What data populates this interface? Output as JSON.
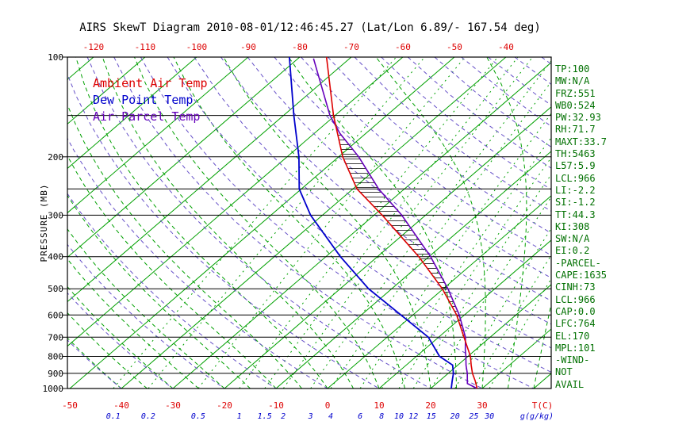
{
  "title": "AIRS SkewT Diagram 2010-08-01/12:46:45.27 (Lat/Lon 6.89/- 167.54 deg)",
  "legend": {
    "items": [
      {
        "label": "Ambient Air Temp",
        "color": "#dd0000"
      },
      {
        "label": "Dew Point Temp",
        "color": "#0000cc"
      },
      {
        "label": "Air Parcel Temp",
        "color": "#6600bb"
      }
    ]
  },
  "axes": {
    "pressure_title": "PRESSURE (MB)",
    "pressure_labels": [
      100,
      200,
      300,
      400,
      500,
      600,
      700,
      800,
      900,
      1000
    ],
    "grid_pressures": [
      100,
      150,
      200,
      250,
      300,
      400,
      500,
      600,
      700,
      800,
      900,
      1000
    ],
    "top_temp_labels": [
      -120,
      -110,
      -100,
      -90,
      -80,
      -70,
      -60,
      -50,
      -40
    ],
    "bottom_temp_labels": [
      -50,
      -40,
      -30,
      -20,
      -10,
      0,
      10,
      20,
      30
    ],
    "temp_title": "T(C)",
    "mixr_title": "g(g/kg)",
    "mixing_ratio_labels": [
      0.1,
      0.2,
      0.5,
      1,
      1.5,
      2,
      3,
      4,
      6,
      8,
      10,
      12,
      15,
      20,
      25,
      30
    ]
  },
  "stats": {
    "lines": [
      "TP:100",
      "MW:N/A",
      "FRZ:551",
      "WB0:524",
      "PW:32.93",
      "RH:71.7",
      "MAXT:33.7",
      "TH:5463",
      "L57:5.9",
      "LCL:966",
      "LI:-2.2",
      "SI:-1.2",
      "TT:44.3",
      "KI:308",
      "SW:N/A",
      "EI:0.2",
      "-PARCEL-",
      "CAPE:1635",
      "CINH:73",
      "LCL:966",
      "CAP:0.0",
      "LFC:764",
      "EL:170",
      "MPL:101",
      "-WIND-",
      "NOT",
      "AVAIL"
    ]
  },
  "colors": {
    "ambient": "#dd0000",
    "dew_point": "#0000cc",
    "parcel": "#6600bb",
    "isotherms": "#00a000",
    "dry_adiabats": "#6650c8",
    "grid": "#000000",
    "stats_text": "#007000",
    "temp_axis_labels": "#dd0000",
    "mixing_ratio_axis_labels": "#0000cc"
  },
  "chart_data": {
    "type": "line",
    "subtype": "skewt-logp-sounding",
    "pressure_log_scale": true,
    "pressure_range_mb": [
      100,
      1000
    ],
    "temp_range_at_1000mb_c": [
      -50,
      40
    ],
    "isotherm_step_c": 10,
    "hatch_pressure_range_mb": [
      172,
      768
    ],
    "series": [
      {
        "name": "Ambient Air Temp",
        "color": "#dd0000",
        "points": [
          [
            1000,
            29
          ],
          [
            950,
            27
          ],
          [
            900,
            24.7
          ],
          [
            850,
            22.6
          ],
          [
            800,
            20.5
          ],
          [
            700,
            14.9
          ],
          [
            600,
            8.5
          ],
          [
            500,
            -0.2
          ],
          [
            400,
            -12
          ],
          [
            300,
            -28.4
          ],
          [
            250,
            -39.2
          ],
          [
            200,
            -49.2
          ],
          [
            150,
            -60.3
          ],
          [
            100,
            -74.8
          ]
        ]
      },
      {
        "name": "Dew Point Temp",
        "color": "#0000cc",
        "points": [
          [
            1000,
            24
          ],
          [
            950,
            22.5
          ],
          [
            900,
            21
          ],
          [
            850,
            19
          ],
          [
            800,
            14.5
          ],
          [
            700,
            8
          ],
          [
            600,
            -2.3
          ],
          [
            500,
            -14.5
          ],
          [
            400,
            -27.2
          ],
          [
            300,
            -42.3
          ],
          [
            250,
            -50.4
          ],
          [
            200,
            -57.7
          ],
          [
            150,
            -68
          ],
          [
            100,
            -82
          ]
        ]
      },
      {
        "name": "Air Parcel Temp",
        "color": "#6600bb",
        "points": [
          [
            1000,
            29
          ],
          [
            966,
            26
          ],
          [
            900,
            23.7
          ],
          [
            850,
            21.6
          ],
          [
            800,
            19.6
          ],
          [
            764,
            18
          ],
          [
            700,
            15.2
          ],
          [
            600,
            9
          ],
          [
            500,
            0.9
          ],
          [
            400,
            -9.7
          ],
          [
            300,
            -24.6
          ],
          [
            250,
            -35
          ],
          [
            200,
            -46.1
          ],
          [
            170,
            -55
          ],
          [
            150,
            -61
          ],
          [
            101,
            -77
          ]
        ]
      }
    ],
    "hatched_region": "horizontal hatching between Ambient and Parcel curves where parcel is warmer (CAPE area)"
  }
}
